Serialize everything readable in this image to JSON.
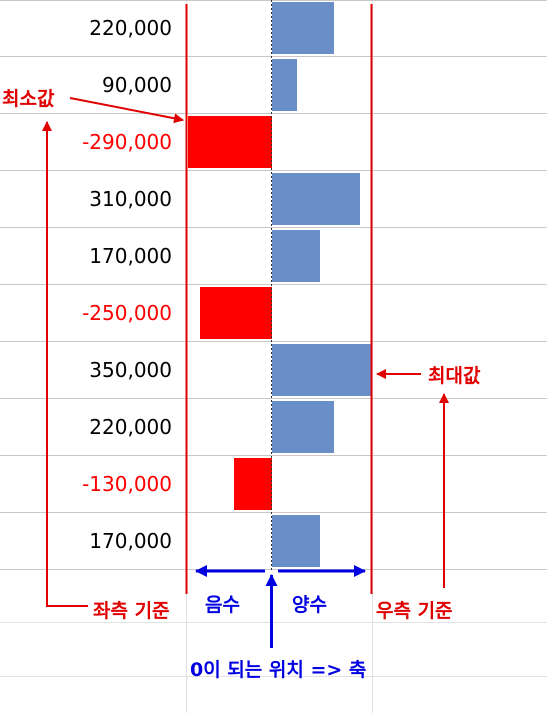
{
  "rows": [
    {
      "value": "220,000",
      "number": 220000
    },
    {
      "value": "90,000",
      "number": 90000
    },
    {
      "value": "-290,000",
      "number": -290000
    },
    {
      "value": "310,000",
      "number": 310000
    },
    {
      "value": "170,000",
      "number": 170000
    },
    {
      "value": "-250,000",
      "number": -250000
    },
    {
      "value": "350,000",
      "number": 350000
    },
    {
      "value": "220,000",
      "number": 220000
    },
    {
      "value": "-130,000",
      "number": -130000
    },
    {
      "value": "170,000",
      "number": 170000
    }
  ],
  "scale": {
    "min": -290000,
    "max": 350000
  },
  "annotations": {
    "min_label": "최소값",
    "max_label": "최대값",
    "left_ref": "좌측 기준",
    "right_ref": "우측 기준",
    "negative": "음수",
    "positive": "양수",
    "axis_note": "0이 되는 위치 => 축"
  },
  "colors": {
    "positive_bar": "#6a8ec7",
    "negative_bar": "#ff0000",
    "negative_text": "#ff0000",
    "annotation_red": "#e00000",
    "annotation_blue": "#0000e0"
  }
}
